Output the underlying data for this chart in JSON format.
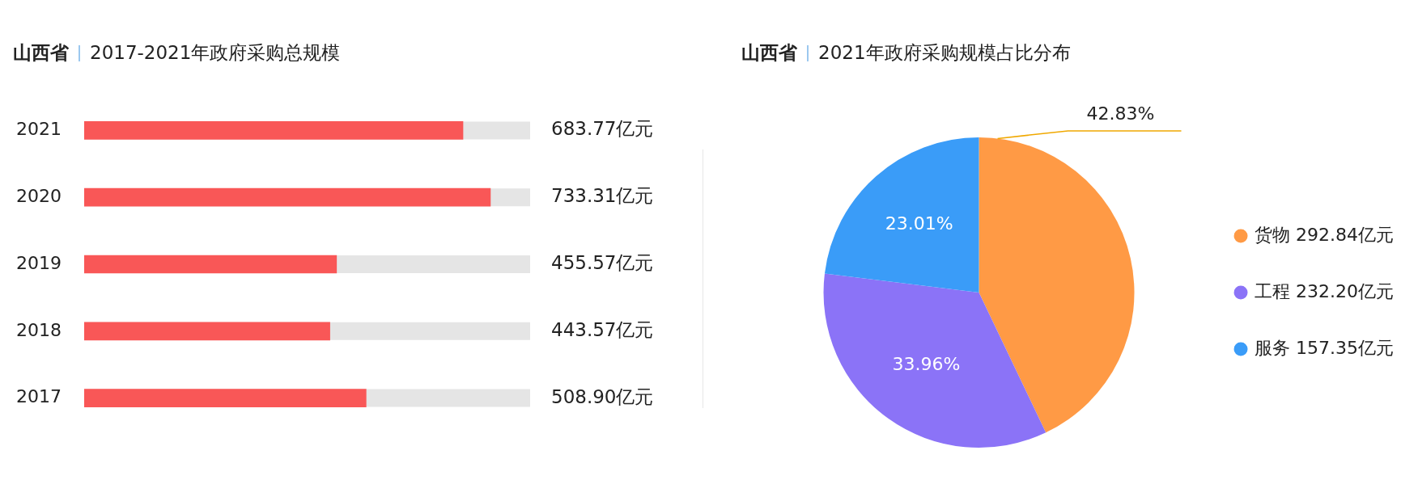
{
  "chart_data": [
    {
      "type": "bar",
      "orientation": "horizontal",
      "title": "山西省",
      "subtitle": "2017-2021年政府采购总规模",
      "categories": [
        "2021",
        "2020",
        "2019",
        "2018",
        "2017"
      ],
      "values": [
        683.77,
        733.31,
        455.57,
        443.57,
        508.9
      ],
      "color": "#f95757",
      "value_labels": [
        "683.77亿元",
        "733.31亿元",
        "455.57亿元",
        "443.57亿元",
        "508.90亿元"
      ],
      "xlim": [
        0,
        805
      ],
      "tick_labels": "y"
    },
    {
      "type": "pie",
      "title": "山西省",
      "subtitle": "2021年政府采购规模占比分布",
      "categories": [
        "货物 292.84亿元",
        "工程 232.20亿元",
        "服务 157.35亿元"
      ],
      "values": [
        42.83,
        33.96,
        23.01
      ],
      "colors": [
        "#ff9a45",
        "#8b73f7",
        "#3a9cf8"
      ],
      "value_labels": [
        "42.83%",
        "33.96%",
        "23.01%"
      ],
      "legend": "right"
    }
  ]
}
